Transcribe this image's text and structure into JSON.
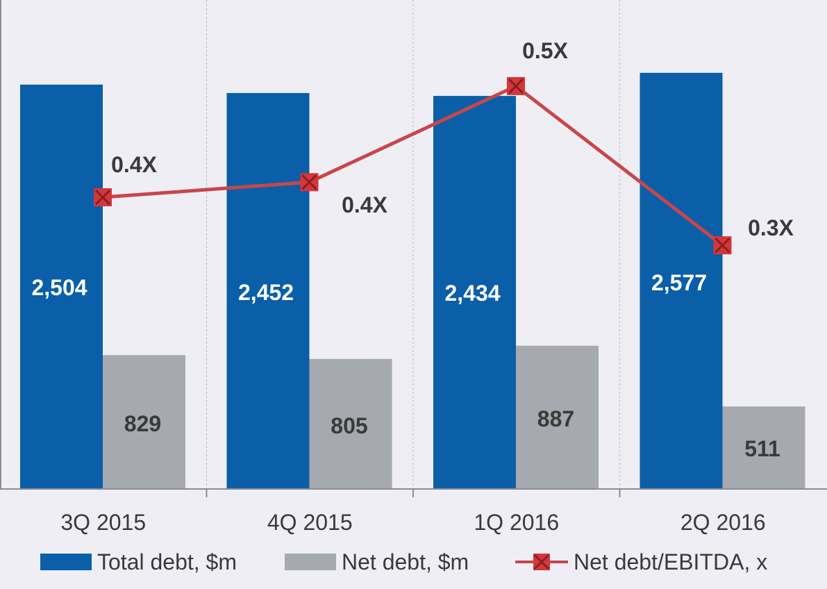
{
  "chart_data": {
    "type": "bar",
    "categories": [
      "3Q 2015",
      "4Q 2015",
      "1Q 2016",
      "2Q 2016"
    ],
    "series": [
      {
        "name": "Total debt, $m",
        "type": "bar",
        "color": "#0a5fa8",
        "values": [
          2504,
          2452,
          2434,
          2577
        ],
        "labels": [
          "2,504",
          "2,452",
          "2,434",
          "2,577"
        ]
      },
      {
        "name": "Net debt, $m",
        "type": "bar",
        "color": "#a6a9b0",
        "values": [
          829,
          805,
          887,
          511
        ],
        "labels": [
          "829",
          "805",
          "887",
          "511"
        ]
      },
      {
        "name": "Net debt/EBITDA, x",
        "type": "line",
        "color": "#c8464a",
        "marker_color": "#d4373b",
        "values": [
          0.4,
          0.4,
          0.5,
          0.3
        ],
        "labels": [
          "0.4X",
          "0.4X",
          "0.5X",
          "0.3X"
        ]
      }
    ],
    "title": "",
    "xlabel": "",
    "ylabel": "",
    "grid": "vertical-dashed",
    "legend": "bottom"
  }
}
